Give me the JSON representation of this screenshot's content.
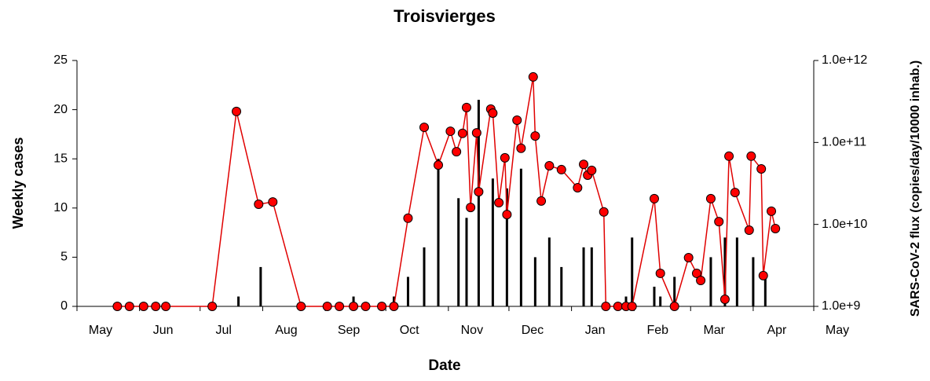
{
  "chart_data": {
    "type": "combo",
    "title": "Troisvierges",
    "xlabel": "Date",
    "ylabel": "Weekly cases",
    "y2label": "SARS-CoV-2 flux (copies/day/10000 inhab.)",
    "xlim": [
      0,
      365
    ],
    "xticks": [
      {
        "value": 0,
        "label": "May"
      },
      {
        "value": 31,
        "label": "Jun"
      },
      {
        "value": 61,
        "label": "Jul"
      },
      {
        "value": 92,
        "label": "Aug"
      },
      {
        "value": 123,
        "label": "Sep"
      },
      {
        "value": 153,
        "label": "Oct"
      },
      {
        "value": 184,
        "label": "Nov"
      },
      {
        "value": 214,
        "label": "Dec"
      },
      {
        "value": 245,
        "label": "Jan"
      },
      {
        "value": 276,
        "label": "Feb"
      },
      {
        "value": 304,
        "label": "Mar"
      },
      {
        "value": 335,
        "label": "Apr"
      },
      {
        "value": 365,
        "label": "May"
      }
    ],
    "ylim": [
      0,
      25
    ],
    "yticks": [
      0,
      5,
      10,
      15,
      20,
      25
    ],
    "y2lim": [
      1000000000.0,
      1000000000000.0
    ],
    "y2log": true,
    "y2ticks": [
      {
        "value": 1000000000.0,
        "label": "1.0e+9"
      },
      {
        "value": 10000000000.0,
        "label": "1.0e+10"
      },
      {
        "value": 100000000000.0,
        "label": "1.0e+11"
      },
      {
        "value": 1000000000000.0,
        "label": "1.0e+12"
      }
    ],
    "grid": false,
    "series": [
      {
        "type": "bar",
        "color": "#000000",
        "x": [
          80,
          91,
          137,
          157,
          164,
          172,
          179,
          189,
          193,
          199,
          206,
          213,
          220,
          227,
          234,
          240,
          251,
          255,
          272,
          275,
          286,
          289,
          296,
          314,
          321,
          327,
          335,
          341
        ],
        "values": [
          1,
          4,
          1,
          1,
          3,
          6,
          15,
          11,
          9,
          21,
          13,
          12,
          14,
          5,
          7,
          4,
          6,
          6,
          1,
          7,
          2,
          1,
          3,
          5,
          7,
          7,
          5,
          3
        ]
      },
      {
        "type": "line",
        "axis": "y2",
        "color": "#e00000",
        "marker_color": "#ff0000",
        "x": [
          20,
          26,
          33,
          39,
          44,
          67,
          79,
          90,
          97,
          111,
          124,
          130,
          137,
          143,
          151,
          157,
          164,
          172,
          179,
          185,
          188,
          191,
          193,
          195,
          198,
          199,
          205,
          206,
          209,
          212,
          213,
          218,
          220,
          226,
          227,
          230,
          234,
          240,
          248,
          251,
          253,
          255,
          261,
          262,
          268,
          272,
          275,
          286,
          289,
          296,
          303,
          307,
          309,
          314,
          318,
          321,
          323,
          326,
          333,
          334,
          339,
          340,
          344,
          346
        ],
        "values": [
          1000000000.0,
          1000000000.0,
          1000000000.0,
          1000000000.0,
          1000000000.0,
          1000000000.0,
          239000000000.0,
          17600000000.0,
          18800000000.0,
          1000000000.0,
          1000000000.0,
          1000000000.0,
          1000000000.0,
          1000000000.0,
          1000000000.0,
          1000000000.0,
          11900000000.0,
          153000000000.0,
          53000000000.0,
          137000000000.0,
          77000000000.0,
          129000000000.0,
          267000000000.0,
          16100000000.0,
          131000000000.0,
          25000000000.0,
          255000000000.0,
          228000000000.0,
          18400000000.0,
          65000000000.0,
          13200000000.0,
          187000000000.0,
          85000000000.0,
          630000000000.0,
          120000000000.0,
          19300000000.0,
          52000000000.0,
          46600000000.0,
          28000000000.0,
          54000000000.0,
          39900000000.0,
          45600000000.0,
          14200000000.0,
          1000000000.0,
          1000000000.0,
          1000000000.0,
          1000000000.0,
          20600000000.0,
          2530000000.0,
          1000000000.0,
          3930000000.0,
          2530000000.0,
          2070000000.0,
          20600000000.0,
          10800000000.0,
          1220000000.0,
          68000000000.0,
          24500000000.0,
          8500000000.0,
          68000000000.0,
          47600000000.0,
          2370000000.0,
          14500000000.0,
          8900000000.0
        ]
      }
    ]
  }
}
